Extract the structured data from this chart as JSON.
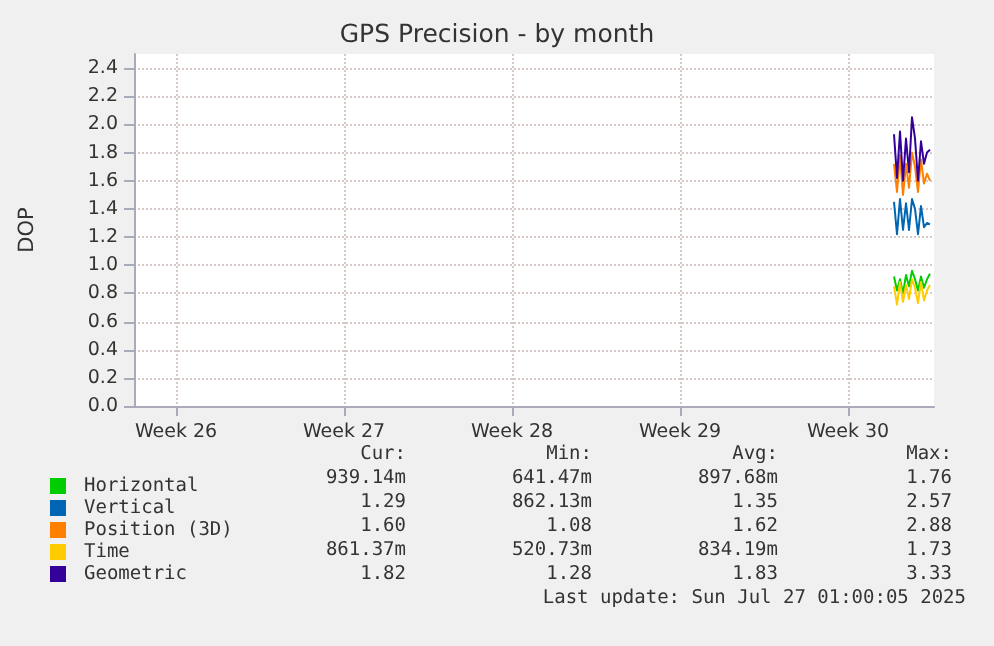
{
  "chart_data": {
    "type": "line",
    "title": "GPS Precision - by month",
    "ylabel": "DOP",
    "x": [
      "2025-07-25T12:00",
      "2025-07-25T15:00",
      "2025-07-25T18:00",
      "2025-07-25T21:00",
      "2025-07-26T00:00",
      "2025-07-26T03:00",
      "2025-07-26T06:00",
      "2025-07-26T09:00",
      "2025-07-26T12:00",
      "2025-07-26T15:00",
      "2025-07-26T18:00",
      "2025-07-26T21:00",
      "2025-07-27T00:00"
    ],
    "series": [
      {
        "name": "Horizontal",
        "color": "#00cc00",
        "values": [
          0.92,
          0.82,
          0.9,
          0.8,
          0.93,
          0.85,
          0.96,
          0.9,
          0.82,
          0.92,
          0.84,
          0.9,
          0.94
        ]
      },
      {
        "name": "Vertical",
        "color": "#0066b3",
        "values": [
          1.45,
          1.22,
          1.47,
          1.25,
          1.44,
          1.25,
          1.47,
          1.4,
          1.22,
          1.42,
          1.27,
          1.3,
          1.29
        ]
      },
      {
        "name": "Position (3D)",
        "color": "#ff8000",
        "values": [
          1.72,
          1.52,
          1.78,
          1.5,
          1.72,
          1.55,
          1.8,
          1.7,
          1.52,
          1.75,
          1.58,
          1.65,
          1.6
        ]
      },
      {
        "name": "Time",
        "color": "#ffcc00",
        "values": [
          0.85,
          0.72,
          0.88,
          0.74,
          0.86,
          0.76,
          0.9,
          0.84,
          0.73,
          0.88,
          0.75,
          0.82,
          0.86
        ]
      },
      {
        "name": "Geometric",
        "color": "#330099",
        "values": [
          1.93,
          1.62,
          1.95,
          1.6,
          1.9,
          1.66,
          2.05,
          1.9,
          1.6,
          1.88,
          1.72,
          1.8,
          1.82
        ]
      }
    ],
    "xlim": [
      "2025-06-23T20:00",
      "2025-07-27T04:00"
    ],
    "xticks": [
      {
        "value": "2025-06-25T14:00",
        "label": "Week 26"
      },
      {
        "value": "2025-07-02T14:00",
        "label": "Week 27"
      },
      {
        "value": "2025-07-09T14:00",
        "label": "Week 28"
      },
      {
        "value": "2025-07-16T14:00",
        "label": "Week 29"
      },
      {
        "value": "2025-07-23T14:00",
        "label": "Week 30"
      }
    ],
    "ylim": [
      0,
      2.5
    ],
    "yticks": [
      {
        "value": 0,
        "label": "0.0"
      },
      0.2,
      0.4,
      0.6,
      0.8,
      {
        "value": 1,
        "label": "1.0"
      },
      1.2,
      1.4,
      1.6,
      1.8,
      {
        "value": 2,
        "label": "2.0"
      },
      2.2,
      2.4
    ],
    "grid": true,
    "legend": "bottom left",
    "marker": "none",
    "line_style": "solid",
    "annotations": [
      "Cur:",
      "Min:",
      "Avg:",
      "Max:",
      "939.14m",
      "641.47m",
      "897.68m",
      "1.76",
      "1.29",
      "862.13m",
      "1.35",
      "2.57",
      "1.60",
      "1.08",
      "1.62",
      "2.88",
      "861.37m",
      "520.73m",
      "834.19m",
      "1.73",
      "1.82",
      "1.28",
      "1.83",
      "3.33",
      "Last update: Sun Jul 27 01:00:05 2025"
    ]
  }
}
